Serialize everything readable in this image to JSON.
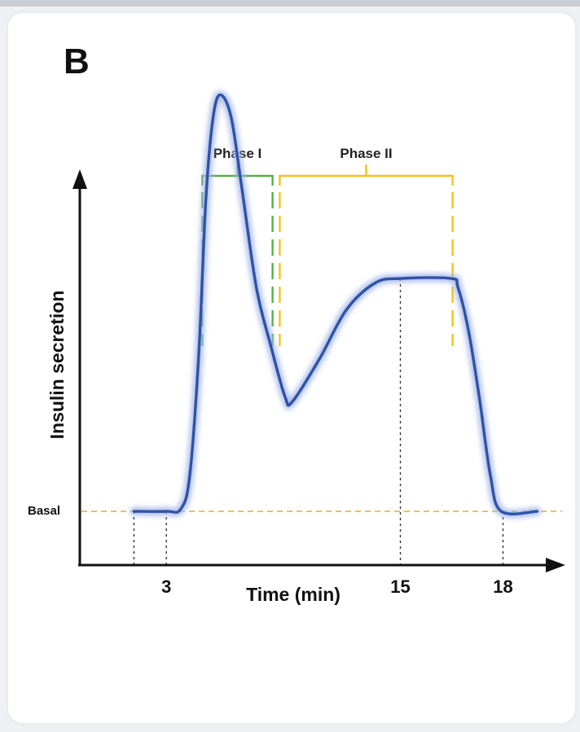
{
  "panel_label": "B",
  "colors": {
    "curve": "#2f52a8",
    "curve_glow": "#9fb3e8",
    "phase1": "#57b048",
    "phase2": "#f0c419",
    "basal_line": "#e2b94c",
    "axis": "#111111",
    "guide": "#333333"
  },
  "chart_data": {
    "type": "line",
    "title": "",
    "xlabel": "Time (min)",
    "ylabel": "Insulin secretion",
    "x_ticks": [
      {
        "value": 3,
        "label": "3"
      },
      {
        "value": 15,
        "label": "15"
      },
      {
        "value": 18,
        "label": "18"
      }
    ],
    "y_ticks": [
      {
        "value": 0,
        "label": "Basal"
      }
    ],
    "xlim": [
      -3,
      26
    ],
    "ylim": [
      -1,
      10
    ],
    "series": [
      {
        "name": "",
        "points": [
          [
            0.2,
            0
          ],
          [
            2.0,
            0
          ],
          [
            2.8,
            0.05
          ],
          [
            3.3,
            0.8
          ],
          [
            3.8,
            3.5
          ],
          [
            4.2,
            7.0
          ],
          [
            4.6,
            8.8
          ],
          [
            5.0,
            9.3
          ],
          [
            5.6,
            8.8
          ],
          [
            6.2,
            7.2
          ],
          [
            7.0,
            5.0
          ],
          [
            7.8,
            3.7
          ],
          [
            8.6,
            2.55
          ],
          [
            9.0,
            2.45
          ],
          [
            10.5,
            3.4
          ],
          [
            12.0,
            4.5
          ],
          [
            13.6,
            5.1
          ],
          [
            15.0,
            5.2
          ],
          [
            17.8,
            5.2
          ],
          [
            18.2,
            5.0
          ],
          [
            18.8,
            4.0
          ],
          [
            19.4,
            2.5
          ],
          [
            20.0,
            0.8
          ],
          [
            20.6,
            0
          ],
          [
            22.6,
            0
          ]
        ]
      }
    ],
    "annotations": [
      {
        "label": "Phase I",
        "color": "phase1",
        "x_from": 4.0,
        "x_to": 7.9
      },
      {
        "label": "Phase II",
        "color": "phase2",
        "x_from": 8.3,
        "x_to": 17.9
      }
    ],
    "reference_line": {
      "label": "Basal",
      "y": 0
    },
    "guide_lines_x": [
      0.2,
      2.0,
      15.0,
      20.7
    ]
  }
}
